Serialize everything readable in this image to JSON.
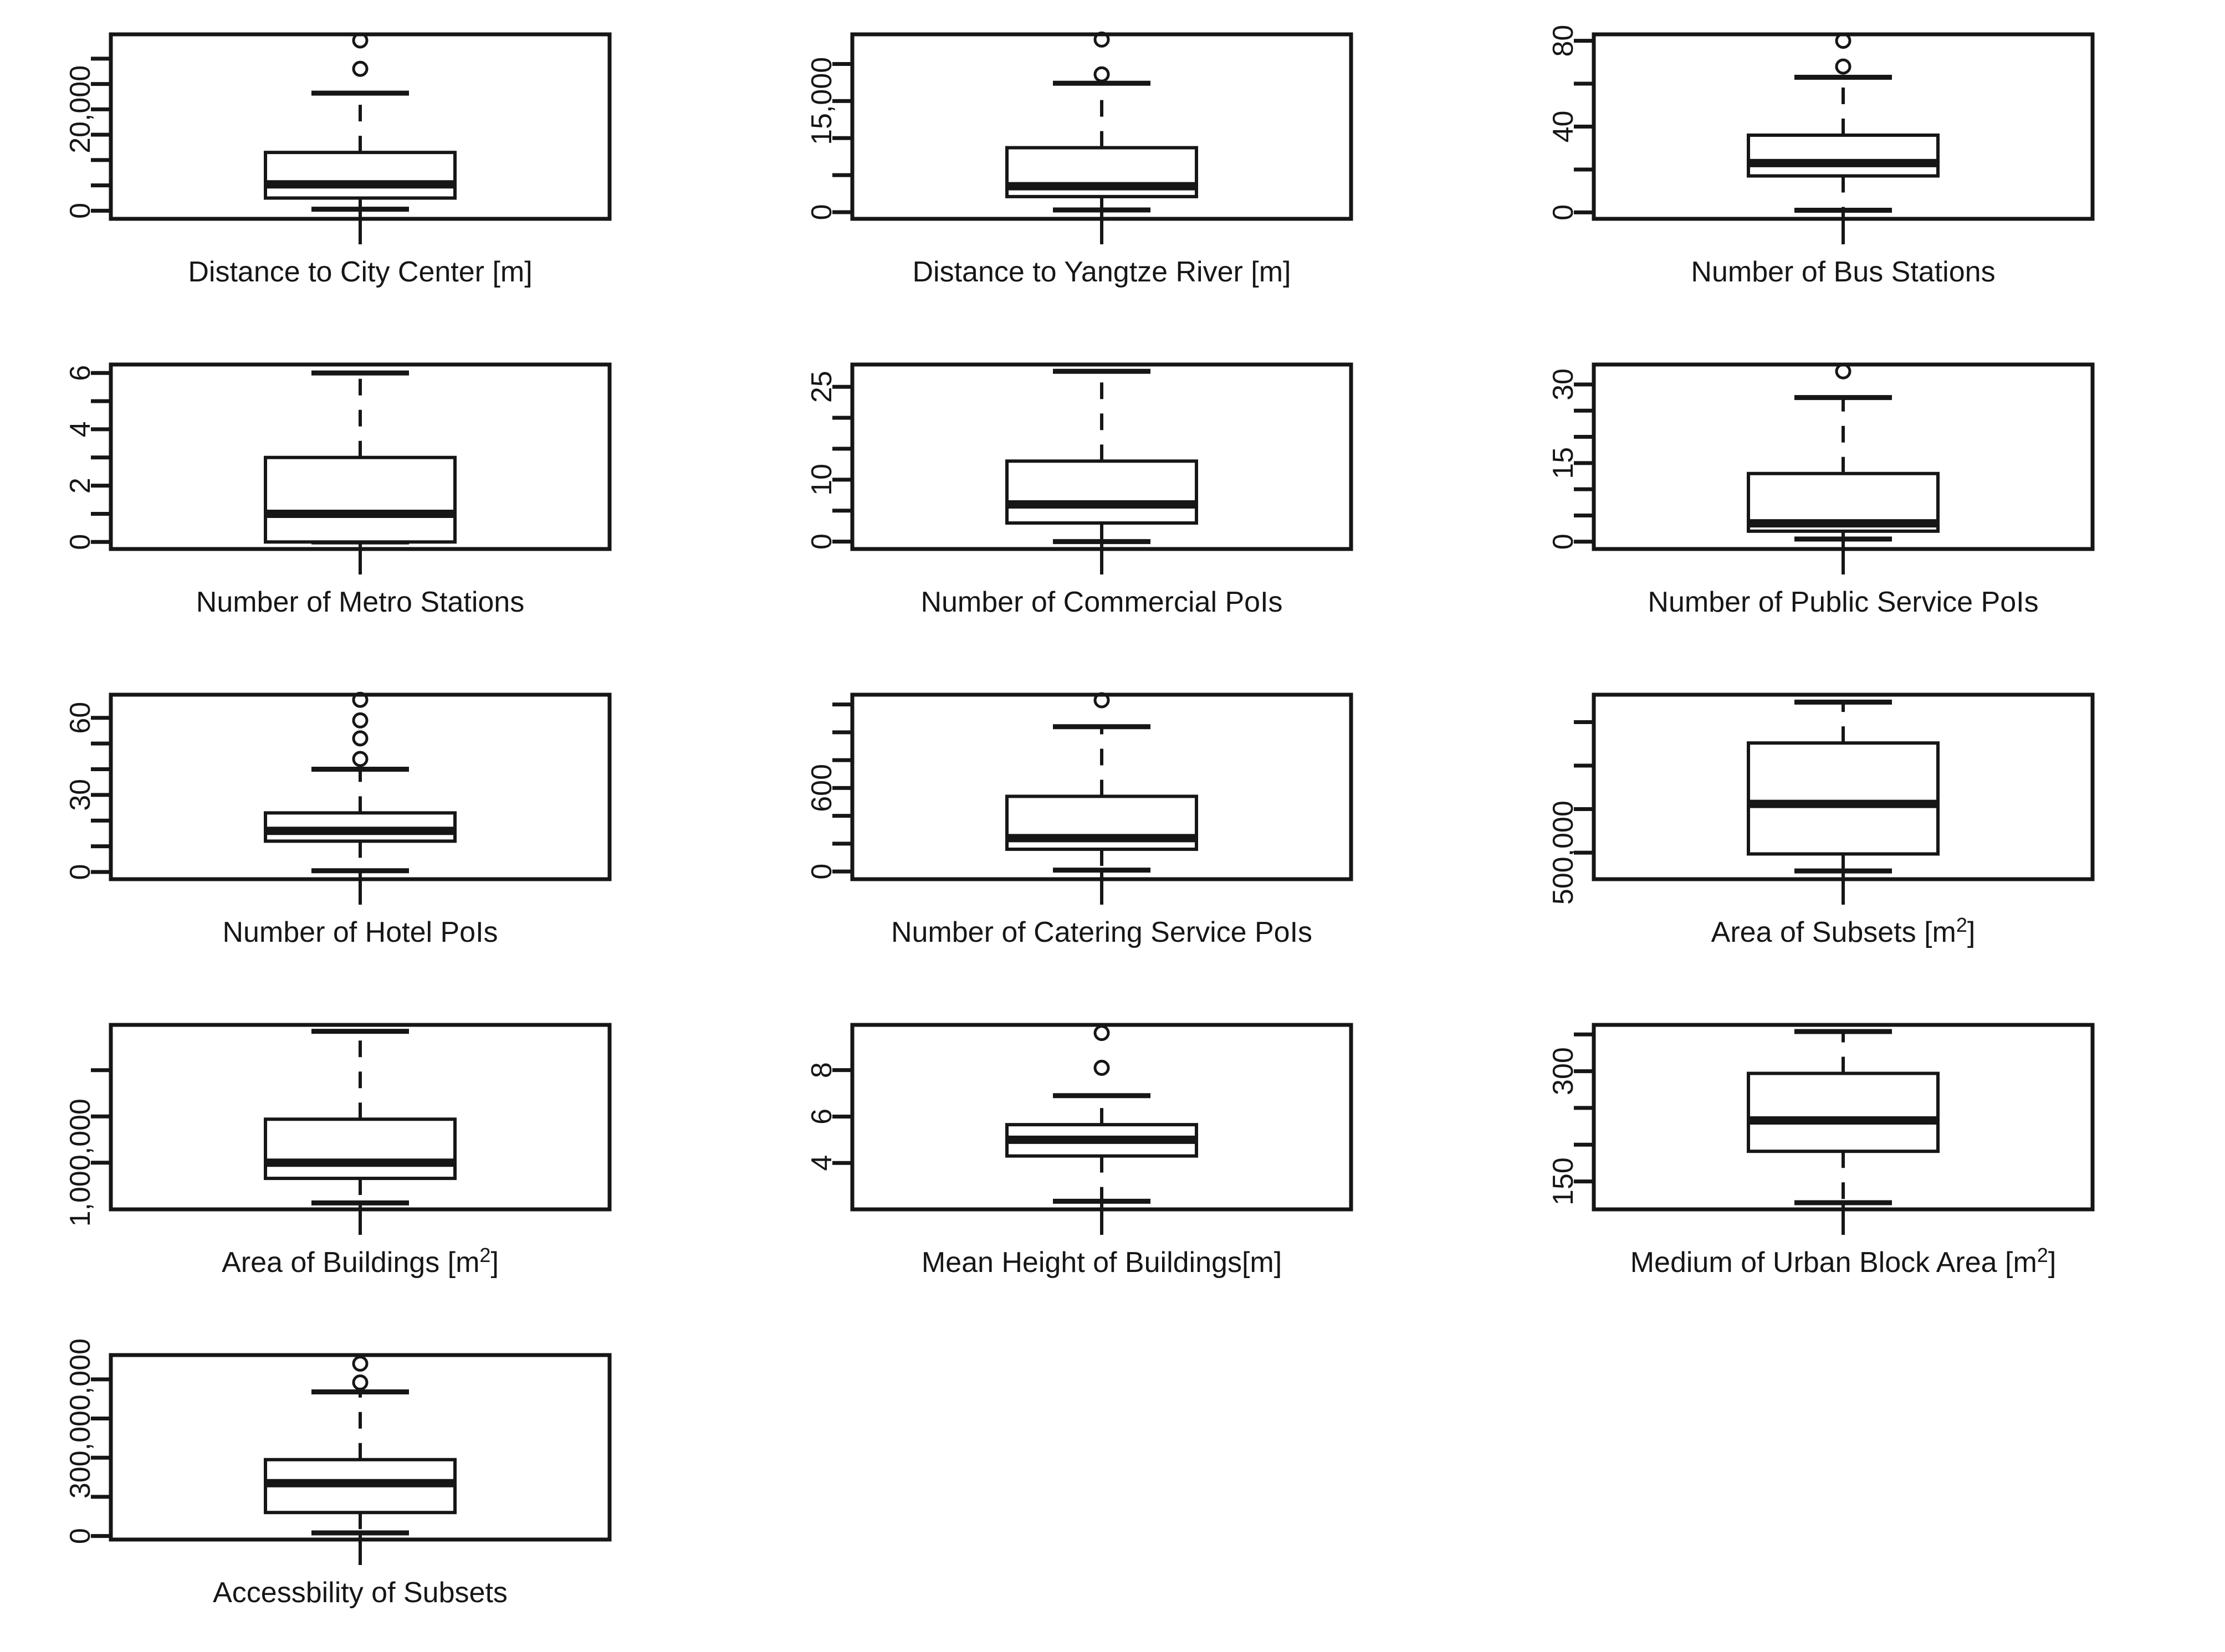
{
  "page": {
    "background": "#ffffff",
    "ink": "#161616"
  },
  "chart_data": {
    "type": "boxplot",
    "layout": {
      "rows": 5,
      "cols": 3,
      "grid_lines": false,
      "tick_label_rotation": 90
    },
    "plots": [
      {
        "title": "Distance to City Center [m]",
        "ymin": -1600,
        "ymax": 34800,
        "yticks": [
          {
            "v": 0,
            "label": "0"
          },
          {
            "v": 5000
          },
          {
            "v": 10000
          },
          {
            "v": 15000
          },
          {
            "v": 20000,
            "label": "20,000"
          },
          {
            "v": 25000
          },
          {
            "v": 30000
          }
        ],
        "box": {
          "whisker_low": 300,
          "q1": 2500,
          "median": 5200,
          "q3": 11500,
          "whisker_high": 23200
        },
        "outliers": [
          28000,
          33600
        ]
      },
      {
        "title": "Distance to Yangtze River [m]",
        "ymin": -900,
        "ymax": 24000,
        "yticks": [
          {
            "v": 0,
            "label": "0"
          },
          {
            "v": 5000
          },
          {
            "v": 10000
          },
          {
            "v": 15000,
            "label": "15,000"
          },
          {
            "v": 20000
          }
        ],
        "box": {
          "whisker_low": 300,
          "q1": 2100,
          "median": 3500,
          "q3": 8700,
          "whisker_high": 17400
        },
        "outliers": [
          18600,
          23300
        ]
      },
      {
        "title": "Number of Bus Stations",
        "ymin": -3,
        "ymax": 83,
        "yticks": [
          {
            "v": 0,
            "label": "0"
          },
          {
            "v": 20
          },
          {
            "v": 40,
            "label": "40"
          },
          {
            "v": 60
          },
          {
            "v": 80,
            "label": "80"
          }
        ],
        "box": {
          "whisker_low": 1,
          "q1": 17,
          "median": 23,
          "q3": 36,
          "whisker_high": 63
        },
        "outliers": [
          68,
          80
        ]
      },
      {
        "title": "Number of Metro Stations",
        "ymin": -0.25,
        "ymax": 6.3,
        "yticks": [
          {
            "v": 0,
            "label": "0"
          },
          {
            "v": 1
          },
          {
            "v": 2,
            "label": "2"
          },
          {
            "v": 3
          },
          {
            "v": 4,
            "label": "4"
          },
          {
            "v": 5
          },
          {
            "v": 6,
            "label": "6"
          }
        ],
        "box": {
          "whisker_low": 0,
          "q1": 0,
          "median": 1,
          "q3": 3,
          "whisker_high": 6
        },
        "outliers": []
      },
      {
        "title": "Number of Commercial PoIs",
        "ymin": -1.2,
        "ymax": 28.6,
        "yticks": [
          {
            "v": 0,
            "label": "0"
          },
          {
            "v": 5
          },
          {
            "v": 10,
            "label": "10"
          },
          {
            "v": 15
          },
          {
            "v": 20
          },
          {
            "v": 25,
            "label": "25"
          }
        ],
        "box": {
          "whisker_low": 0,
          "q1": 3,
          "median": 6,
          "q3": 13,
          "whisker_high": 27.5
        },
        "outliers": []
      },
      {
        "title": "Number of Public Service PoIs",
        "ymin": -1.4,
        "ymax": 33.8,
        "yticks": [
          {
            "v": 0,
            "label": "0"
          },
          {
            "v": 5
          },
          {
            "v": 10
          },
          {
            "v": 15,
            "label": "15"
          },
          {
            "v": 20
          },
          {
            "v": 25
          },
          {
            "v": 30,
            "label": "30"
          }
        ],
        "box": {
          "whisker_low": 0.5,
          "q1": 2,
          "median": 3.5,
          "q3": 13,
          "whisker_high": 27.5
        },
        "outliers": [
          32.5
        ]
      },
      {
        "title": "Number of Hotel PoIs",
        "ymin": -2.8,
        "ymax": 69,
        "yticks": [
          {
            "v": 0,
            "label": "0"
          },
          {
            "v": 10
          },
          {
            "v": 20
          },
          {
            "v": 30,
            "label": "30"
          },
          {
            "v": 40
          },
          {
            "v": 50
          },
          {
            "v": 60,
            "label": "60"
          }
        ],
        "box": {
          "whisker_low": 0.5,
          "q1": 12,
          "median": 16,
          "q3": 23,
          "whisker_high": 40
        },
        "outliers": [
          44,
          52,
          59,
          67
        ]
      },
      {
        "title": "Number of Catering Service PoIs",
        "ymin": -55,
        "ymax": 1270,
        "yticks": [
          {
            "v": 0,
            "label": "0"
          },
          {
            "v": 200
          },
          {
            "v": 400
          },
          {
            "v": 600,
            "label": "600"
          },
          {
            "v": 800
          },
          {
            "v": 1000
          },
          {
            "v": 1200
          }
        ],
        "box": {
          "whisker_low": 10,
          "q1": 160,
          "median": 240,
          "q3": 540,
          "whisker_high": 1040
        },
        "outliers": [
          1230
        ]
      },
      {
        "title": "Area of Subsets [m²]",
        "ymin": 439000,
        "ymax": 863000,
        "yticks": [
          {
            "v": 500000,
            "label": "500,000"
          },
          {
            "v": 600000
          },
          {
            "v": 700000
          },
          {
            "v": 800000
          }
        ],
        "box": {
          "whisker_low": 458000,
          "q1": 497000,
          "median": 612000,
          "q3": 752000,
          "whisker_high": 846000
        },
        "outliers": []
      },
      {
        "title": "Area of Buildings [m²]",
        "ymin": 495000,
        "ymax": 2490000,
        "yticks": [
          {
            "v": 1000000,
            "label": "1,000,000"
          },
          {
            "v": 1500000
          },
          {
            "v": 2000000
          }
        ],
        "box": {
          "whisker_low": 565000,
          "q1": 830000,
          "median": 1000000,
          "q3": 1470000,
          "whisker_high": 2420000
        },
        "outliers": []
      },
      {
        "title": "Mean Height of Buildings[m]",
        "ymin": 2.0,
        "ymax": 9.95,
        "yticks": [
          {
            "v": 4,
            "label": "4"
          },
          {
            "v": 6,
            "label": "6"
          },
          {
            "v": 8,
            "label": "8"
          }
        ],
        "box": {
          "whisker_low": 2.35,
          "q1": 4.3,
          "median": 5.0,
          "q3": 5.65,
          "whisker_high": 6.9
        },
        "outliers": [
          8.1,
          9.6
        ]
      },
      {
        "title": "Medium of Urban Block Area [m²]",
        "ymin": 112,
        "ymax": 363,
        "yticks": [
          {
            "v": 150,
            "label": "150"
          },
          {
            "v": 200
          },
          {
            "v": 250
          },
          {
            "v": 300,
            "label": "300"
          },
          {
            "v": 350
          }
        ],
        "box": {
          "whisker_low": 121,
          "q1": 191,
          "median": 233,
          "q3": 297,
          "whisker_high": 354
        },
        "outliers": []
      },
      {
        "title": "Accessbility of Subsets",
        "ymin": -9000000,
        "ymax": 462000000,
        "yticks": [
          {
            "v": 0,
            "label": "0"
          },
          {
            "v": 100000000
          },
          {
            "v": 200000000
          },
          {
            "v": 300000000,
            "label": "300,000,000"
          },
          {
            "v": 400000000
          }
        ],
        "box": {
          "whisker_low": 8000000,
          "q1": 60000000,
          "median": 135000000,
          "q3": 195000000,
          "whisker_high": 368000000
        },
        "outliers": [
          392000000,
          440000000
        ]
      }
    ]
  }
}
